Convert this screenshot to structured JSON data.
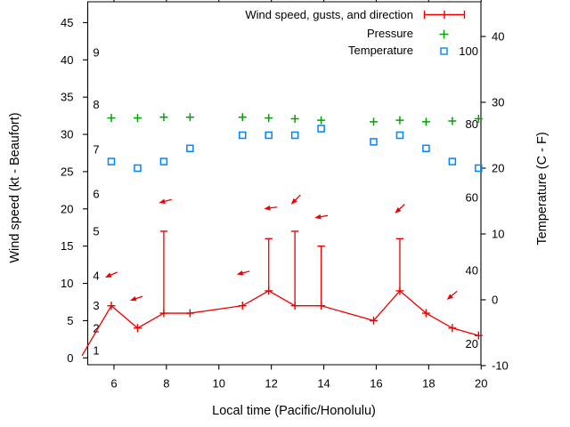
{
  "chart_data": {
    "type": "line",
    "title": "",
    "x_label": "Local time (Pacific/Honolulu)",
    "x_range": [
      5,
      20
    ],
    "x_ticks": [
      6,
      8,
      10,
      12,
      14,
      16,
      18,
      20
    ],
    "left_axis": {
      "label": "Wind speed (kt - Beaufort)",
      "units": "kt",
      "range": [
        0,
        47.8
      ],
      "ticks": [
        0,
        5,
        10,
        15,
        20,
        25,
        30,
        35,
        40,
        45
      ]
    },
    "right_axis": {
      "label": "Temperature (C - F)",
      "units": "C",
      "range_c": [
        -10.1,
        45.3
      ],
      "ticks_c": [
        40,
        30,
        20,
        10,
        0,
        -10
      ]
    },
    "beaufort_scale_labels": [
      {
        "b": 1,
        "kt": 1
      },
      {
        "b": 2,
        "kt": 4
      },
      {
        "b": 3,
        "kt": 7
      },
      {
        "b": 4,
        "kt": 11
      },
      {
        "b": 5,
        "kt": 17
      },
      {
        "b": 6,
        "kt": 22
      },
      {
        "b": 7,
        "kt": 28
      },
      {
        "b": 8,
        "kt": 34
      },
      {
        "b": 9,
        "kt": 41
      }
    ],
    "fahrenheit_scale_labels": [
      20,
      40,
      60,
      80,
      100
    ],
    "grid": false,
    "legend_position": "top-right-inside",
    "x_hours": [
      5.9,
      6.9,
      7.9,
      8.9,
      10.9,
      11.9,
      12.9,
      13.9,
      15.9,
      16.9,
      17.9,
      18.9,
      19.9
    ],
    "series": [
      {
        "name": "Wind speed, gusts, and direction",
        "type": "line-markers-errorbars",
        "marker": "plus",
        "color": "#ee0000",
        "axis": "left",
        "values_kt": [
          7,
          4,
          6,
          6,
          7,
          9,
          7,
          7,
          5,
          9,
          6,
          4,
          3
        ],
        "gusts_kt": [
          null,
          null,
          17,
          null,
          null,
          16,
          17,
          15,
          null,
          16,
          null,
          null,
          null
        ],
        "leadin_point": {
          "t": 4.78,
          "kt": 0.3
        }
      },
      {
        "name": "Pressure",
        "type": "markers",
        "marker": "plus",
        "color": "#00a400",
        "axis": "left-axis-units",
        "values_axis_units": [
          32.2,
          32.2,
          32.3,
          32.3,
          32.3,
          32.2,
          32.1,
          31.9,
          31.7,
          31.9,
          31.7,
          31.8,
          32.1
        ],
        "note": "no labeled pressure scale is shown on the chart"
      },
      {
        "name": "Temperature",
        "type": "markers",
        "marker": "open-square",
        "color": "#0084ff",
        "axis": "right",
        "values_c": [
          21,
          20,
          21,
          23,
          25,
          25,
          25,
          26,
          24,
          25,
          23,
          21,
          20
        ]
      }
    ],
    "wind_direction_arrows": {
      "note": "red arrows above the wind trace; angle_deg screen convention 0=right 90=down",
      "arrows": [
        {
          "t": 5.66,
          "kt": 10.8,
          "angle_deg": 157
        },
        {
          "t": 6.61,
          "kt": 7.7,
          "angle_deg": 162
        },
        {
          "t": 7.71,
          "kt": 20.8,
          "angle_deg": 165
        },
        {
          "t": 10.68,
          "kt": 11.2,
          "angle_deg": 166
        },
        {
          "t": 11.72,
          "kt": 20.0,
          "angle_deg": 172
        },
        {
          "t": 12.75,
          "kt": 20.6,
          "angle_deg": 135
        },
        {
          "t": 13.65,
          "kt": 18.8,
          "angle_deg": 170
        },
        {
          "t": 16.71,
          "kt": 19.4,
          "angle_deg": 137
        },
        {
          "t": 18.69,
          "kt": 7.8,
          "angle_deg": 140
        }
      ]
    },
    "colors": {
      "wind": "#ee0000",
      "pressure": "#00a400",
      "temperature": "#0084ff",
      "axis": "#000000",
      "background": "#ffffff"
    }
  }
}
